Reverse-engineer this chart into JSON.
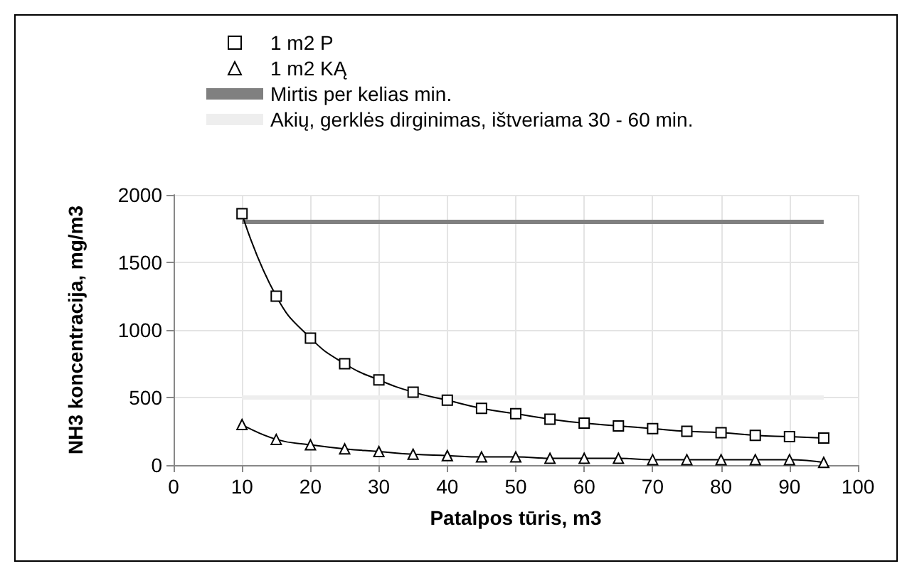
{
  "chart_data": {
    "type": "line",
    "xlabel": "Patalpos tūris, m3",
    "ylabel": "NH3 koncentracija, mg/m3",
    "x": [
      10,
      15,
      20,
      25,
      30,
      35,
      40,
      45,
      50,
      55,
      60,
      65,
      70,
      75,
      80,
      85,
      90,
      95
    ],
    "series": [
      {
        "name": "1 m2 P",
        "color": "#000000",
        "marker": "square",
        "values": [
          1860,
          1250,
          940,
          750,
          630,
          540,
          480,
          420,
          380,
          340,
          310,
          290,
          270,
          250,
          240,
          220,
          210,
          200
        ]
      },
      {
        "name": "1 m2 KĄ",
        "color": "#000000",
        "marker": "triangle",
        "values": [
          300,
          190,
          150,
          120,
          100,
          80,
          70,
          60,
          60,
          50,
          50,
          50,
          40,
          40,
          40,
          40,
          40,
          20
        ]
      }
    ],
    "ref_lines": [
      {
        "axis": "y",
        "value": 1800,
        "label": "Mirtis per kelias min.",
        "color": "#808080"
      },
      {
        "axis": "y",
        "value": 500,
        "label": "Akių, gerklės dirginimas, ištveriama 30 - 60 min.",
        "color": "#eeeeee"
      }
    ],
    "xlim": [
      0,
      100
    ],
    "xticks": [
      0,
      10,
      20,
      30,
      40,
      50,
      60,
      70,
      80,
      90,
      100
    ],
    "ylim": [
      0,
      2000
    ],
    "yticks": [
      0,
      500,
      1000,
      1500,
      2000
    ],
    "grid": true,
    "legend": "top"
  }
}
